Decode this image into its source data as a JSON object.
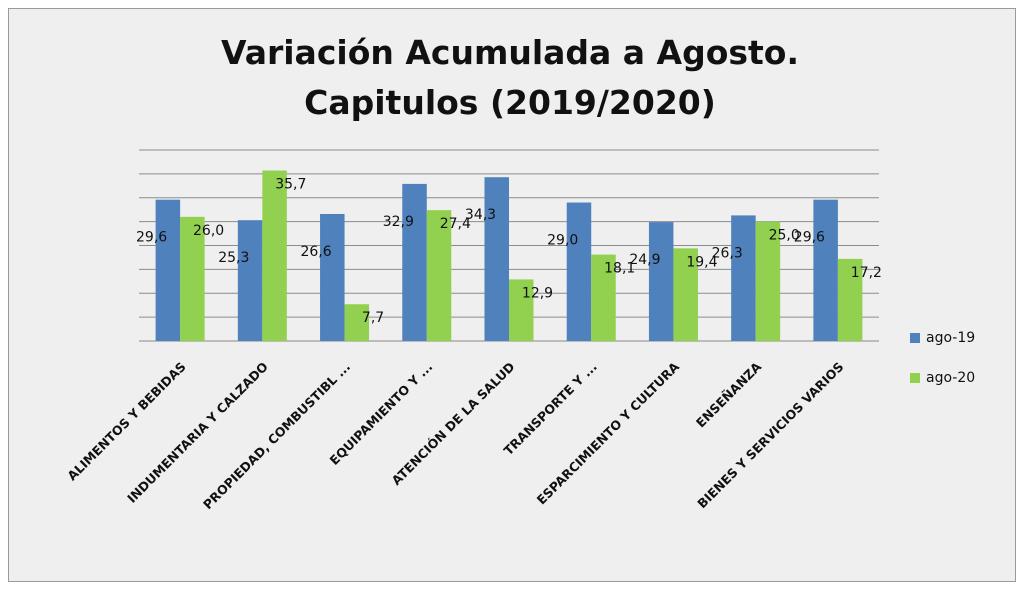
{
  "chart_data": {
    "type": "bar",
    "title": "Variación Acumulada a Agosto. Capitulos (2019/2020)",
    "categories": [
      "ALIMENTOS Y BEBIDAS",
      "INDUMENTARIA Y CALZADO",
      "PROPIEDAD, COMBUSTIBL ...",
      "EQUIPAMIENTO Y ...",
      "ATENCIÓN DE LA SALUD",
      "TRANSPORTE Y ...",
      "ESPARCIMIENTO Y CULTURA",
      "ENSEÑANZA",
      "BIENES Y SERVICIOS VARIOS"
    ],
    "series": [
      {
        "name": "ago-19",
        "color": "#4f81bd",
        "values": [
          29.6,
          25.3,
          26.6,
          32.9,
          34.3,
          29.0,
          24.9,
          26.3,
          29.6
        ],
        "value_labels": [
          "29,6",
          "25,3",
          "26,6",
          "32,9",
          "34,3",
          "29,0",
          "24,9",
          "26,3",
          "29,6"
        ]
      },
      {
        "name": "ago-20",
        "color": "#92d050",
        "values": [
          26.0,
          35.7,
          7.7,
          27.4,
          12.9,
          18.1,
          19.4,
          25.0,
          17.2
        ],
        "value_labels": [
          "26,0",
          "35,7",
          "7,7",
          "27,4",
          "12,9",
          "18,1",
          "19,4",
          "25,0",
          "17,2"
        ]
      }
    ],
    "ylim": [
      0,
      40
    ],
    "yticks": [
      0,
      5,
      10,
      15,
      20,
      25,
      30,
      35,
      40
    ],
    "grid": true,
    "legend": "right"
  }
}
